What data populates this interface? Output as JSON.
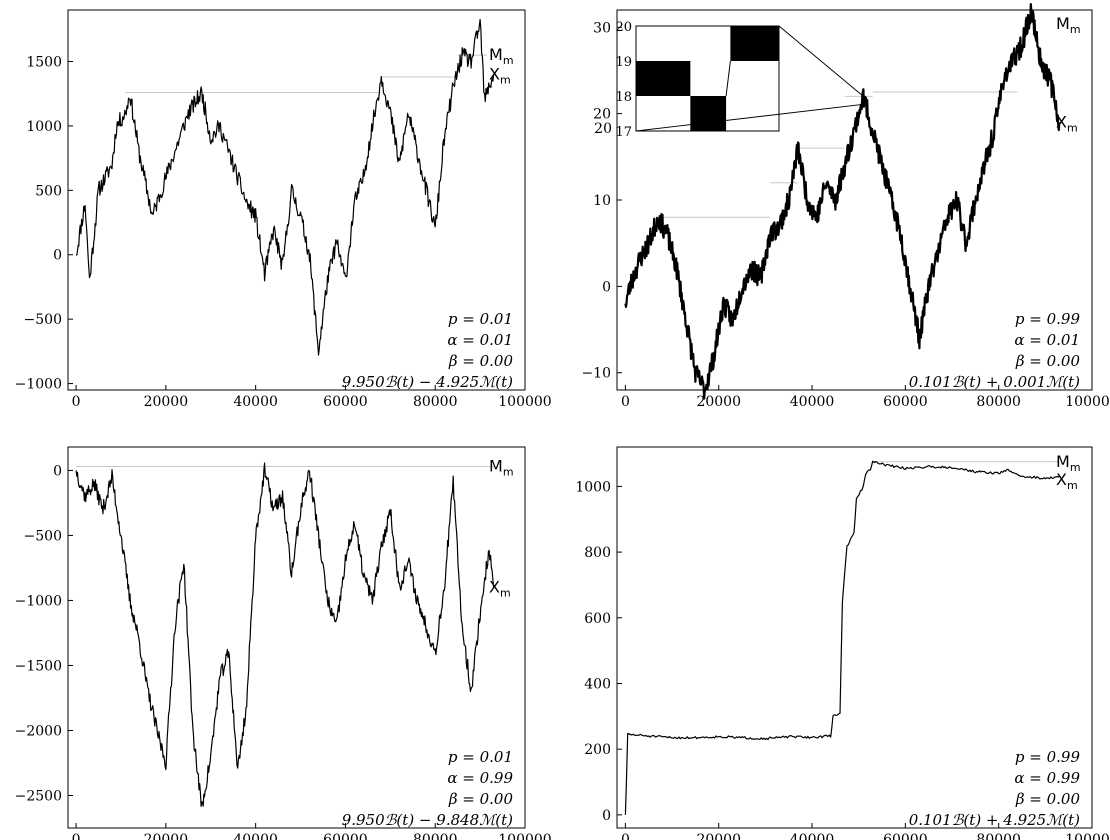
{
  "chart_data": [
    {
      "type": "line",
      "xlim": [
        -1800,
        100000
      ],
      "ylim": [
        -1050,
        1900
      ],
      "xticks": [
        0,
        20000,
        40000,
        60000,
        80000,
        100000
      ],
      "xtick_labels": [
        "0",
        "20000",
        "40000",
        "60000",
        "80000",
        "100000"
      ],
      "yticks": [
        -1000,
        -500,
        0,
        500,
        1000,
        1500
      ],
      "ytick_labels": [
        "−1000",
        "−500",
        "0",
        "500",
        "1000",
        "1500"
      ],
      "side_labels": {
        "max": "M",
        "cur": "X",
        "sub": "m"
      },
      "annotation": [
        "p = 0.01",
        "α = 0.01",
        "β = 0.00",
        "9.950ℬ(t) − 4.925ℳ(t)"
      ],
      "series": [
        {
          "x": [
            0,
            2000,
            3000,
            5000,
            8000,
            9000,
            11000,
            12000,
            14000,
            17000,
            19000,
            22000,
            25000,
            28000,
            30000,
            32000,
            35000,
            38000,
            40000,
            42000,
            44000,
            46000,
            48000,
            50000,
            52000,
            54000,
            56000,
            58000,
            60000,
            62000,
            64000,
            66000,
            68000,
            70000,
            72000,
            74000,
            76000,
            78000,
            80000,
            82000,
            84000,
            86000,
            88000,
            90000,
            91000,
            93000
          ],
          "y": [
            0,
            400,
            -200,
            500,
            700,
            1000,
            1100,
            1250,
            800,
            300,
            500,
            800,
            1100,
            1260,
            900,
            1000,
            700,
            400,
            300,
            -150,
            200,
            -100,
            500,
            300,
            0,
            -750,
            -200,
            100,
            -200,
            400,
            600,
            1000,
            1380,
            1100,
            700,
            1100,
            800,
            500,
            200,
            900,
            1300,
            1550,
            1500,
            1800,
            1200,
            1400
          ]
        }
      ],
      "max_lines": [
        [
          11000,
          68000,
          1260
        ],
        [
          68000,
          85000,
          1380
        ],
        [
          85000,
          91000,
          1550
        ]
      ]
    },
    {
      "type": "line",
      "xlim": [
        -1800,
        100000
      ],
      "ylim": [
        -12,
        32
      ],
      "xticks": [
        0,
        20000,
        40000,
        60000,
        80000,
        100000
      ],
      "xtick_labels": [
        "0",
        "20000",
        "40000",
        "60000",
        "80000",
        "100000"
      ],
      "yticks": [
        -10,
        0,
        10,
        20,
        30
      ],
      "ytick_labels": [
        "−10",
        "0",
        "10",
        "20",
        "30"
      ],
      "side_labels": {
        "max": "M",
        "cur": "X",
        "sub": "m"
      },
      "annotation": [
        "p = 0.99",
        "α = 0.01",
        "β = 0.00",
        "0.101ℬ(t) + 0.001ℳ(t)"
      ],
      "series": [
        {
          "x": [
            0,
            1000,
            3000,
            5000,
            7000,
            9000,
            11000,
            13000,
            15000,
            17000,
            19000,
            21000,
            23000,
            25000,
            27000,
            29000,
            31000,
            33000,
            35000,
            37000,
            39000,
            41000,
            43000,
            45000,
            47000,
            49000,
            51000,
            53000,
            55000,
            57000,
            59000,
            61000,
            63000,
            65000,
            67000,
            69000,
            71000,
            73000,
            75000,
            77000,
            79000,
            81000,
            83000,
            85000,
            87000,
            89000,
            91000,
            93000
          ],
          "y": [
            -2,
            0,
            3,
            5,
            8,
            6,
            2,
            -4,
            -10,
            -12,
            -8,
            -2,
            -4,
            0,
            2,
            1,
            6,
            7,
            10,
            16,
            10,
            8,
            12,
            10,
            14,
            18,
            22,
            18,
            14,
            10,
            6,
            0,
            -6,
            0,
            4,
            8,
            10,
            5,
            10,
            14,
            18,
            24,
            26,
            28,
            32,
            26,
            24,
            19
          ]
        }
      ],
      "max_lines": [
        [
          7000,
          31000,
          8
        ],
        [
          31000,
          37000,
          12
        ],
        [
          37000,
          47000,
          16
        ],
        [
          47000,
          53000,
          22
        ],
        [
          53000,
          84000,
          22.5
        ],
        [
          84000,
          93000,
          32
        ]
      ],
      "inset": {
        "ylim": [
          17,
          20
        ],
        "yticks": [
          17,
          18,
          19,
          20
        ],
        "ytick_labels": [
          "17",
          "18",
          "19",
          "20"
        ],
        "left_label": "20",
        "blocks": [
          {
            "x0": 0.0,
            "x1": 0.38,
            "y0": 18.0,
            "y1": 19.0
          },
          {
            "x0": 0.38,
            "x1": 0.63,
            "y0": 17.0,
            "y1": 18.0
          },
          {
            "x0": 0.66,
            "x1": 1.0,
            "y0": 19.0,
            "y1": 20.0
          }
        ]
      }
    },
    {
      "type": "line",
      "xlim": [
        -1800,
        100000
      ],
      "ylim": [
        -2750,
        180
      ],
      "xticks": [
        0,
        20000,
        40000,
        60000,
        80000,
        100000
      ],
      "xtick_labels": [
        "0",
        "20000",
        "40000",
        "60000",
        "80000",
        "100000"
      ],
      "yticks": [
        -2500,
        -2000,
        -1500,
        -1000,
        -500,
        0
      ],
      "ytick_labels": [
        "−2500",
        "−2000",
        "−1500",
        "−1000",
        "−500",
        "0"
      ],
      "side_labels": {
        "max": "M",
        "cur": "X",
        "sub": "m"
      },
      "annotation": [
        "p = 0.01",
        "α = 0.99",
        "β = 0.00",
        "9.950ℬ(t) − 9.848ℳ(t)"
      ],
      "series": [
        {
          "x": [
            0,
            2000,
            4000,
            6000,
            8000,
            10000,
            12000,
            14000,
            16000,
            18000,
            20000,
            22000,
            24000,
            26000,
            28000,
            30000,
            32000,
            34000,
            36000,
            38000,
            40000,
            42000,
            44000,
            46000,
            48000,
            50000,
            52000,
            54000,
            56000,
            58000,
            60000,
            62000,
            64000,
            66000,
            68000,
            70000,
            72000,
            74000,
            76000,
            78000,
            80000,
            82000,
            84000,
            86000,
            88000,
            90000,
            92000,
            93000
          ],
          "y": [
            0,
            -200,
            -100,
            -300,
            -50,
            -500,
            -1000,
            -1300,
            -1700,
            -2000,
            -2250,
            -1200,
            -700,
            -2000,
            -2600,
            -2200,
            -1600,
            -1400,
            -2300,
            -1800,
            -500,
            0,
            -300,
            -200,
            -800,
            -300,
            0,
            -500,
            -1000,
            -1200,
            -700,
            -400,
            -800,
            -1000,
            -600,
            -300,
            -900,
            -700,
            -1000,
            -1200,
            -1400,
            -900,
            -100,
            -1200,
            -1700,
            -1100,
            -600,
            -900
          ]
        }
      ],
      "max_lines": [
        [
          0,
          93000,
          30
        ]
      ]
    },
    {
      "type": "line",
      "xlim": [
        -1800,
        100000
      ],
      "ylim": [
        -40,
        1120
      ],
      "xticks": [
        0,
        20000,
        40000,
        60000,
        80000,
        100000
      ],
      "xtick_labels": [
        "0",
        "20000",
        "40000",
        "60000",
        "80000",
        "100000"
      ],
      "yticks": [
        0,
        200,
        400,
        600,
        800,
        1000
      ],
      "ytick_labels": [
        "0",
        "200",
        "400",
        "600",
        "800",
        "1000"
      ],
      "side_labels": {
        "max": "M",
        "cur": "X",
        "sub": "m"
      },
      "annotation": [
        "p = 0.99",
        "α = 0.99",
        "β = 0.00",
        "0.101ℬ(t) + 4.925ℳ(t)"
      ],
      "series": [
        {
          "x": [
            0,
            500,
            5000,
            10000,
            15000,
            20000,
            25000,
            30000,
            35000,
            40000,
            44000,
            44500,
            46000,
            46500,
            47500,
            48000,
            49000,
            49500,
            51000,
            51500,
            52500,
            53000,
            56000,
            60000,
            65000,
            70000,
            75000,
            80000,
            82000,
            85000,
            90000,
            93000
          ],
          "y": [
            0,
            245,
            240,
            235,
            235,
            238,
            235,
            232,
            238,
            236,
            240,
            300,
            310,
            650,
            820,
            830,
            860,
            960,
            1000,
            1040,
            1050,
            1075,
            1065,
            1055,
            1060,
            1058,
            1045,
            1040,
            1050,
            1030,
            1025,
            1028
          ]
        }
      ],
      "max_lines": [
        [
          53000,
          93000,
          1075
        ]
      ]
    }
  ]
}
